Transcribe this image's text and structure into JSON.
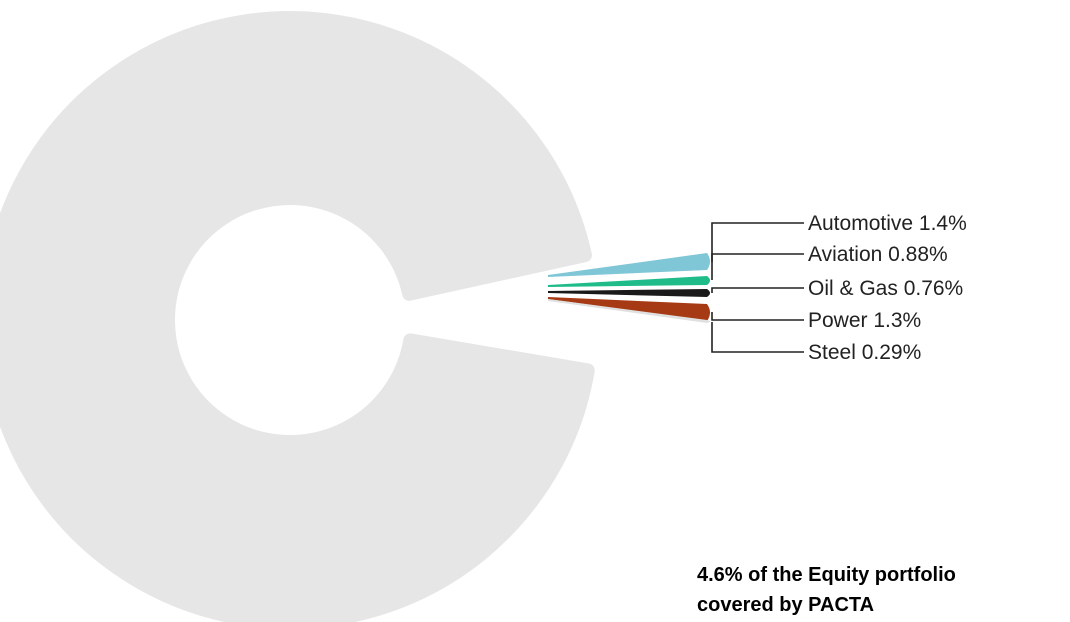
{
  "chart_data": {
    "type": "pie",
    "style": "donut",
    "title": "",
    "series": [
      {
        "name": "Automotive",
        "value": 1.4,
        "display": "1.4%",
        "color": "#7fc6d6"
      },
      {
        "name": "Aviation",
        "value": 0.88,
        "display": "0.88%",
        "color": "#1fbc8a"
      },
      {
        "name": "Oil & Gas",
        "value": 0.76,
        "display": "0.76%",
        "color": "#1a1a1a"
      },
      {
        "name": "Power",
        "value": 1.3,
        "display": "1.3%",
        "color": "#a63a14"
      },
      {
        "name": "Steel",
        "value": 0.29,
        "display": "0.29%",
        "color": "#e0e0e0"
      }
    ],
    "remainder": {
      "value": 95.4,
      "color": "#e6e6e6"
    },
    "legend": "leader-line labels to the right"
  },
  "caption": {
    "line1": "4.6% of the Equity portfolio",
    "line2": "covered by PACTA"
  }
}
